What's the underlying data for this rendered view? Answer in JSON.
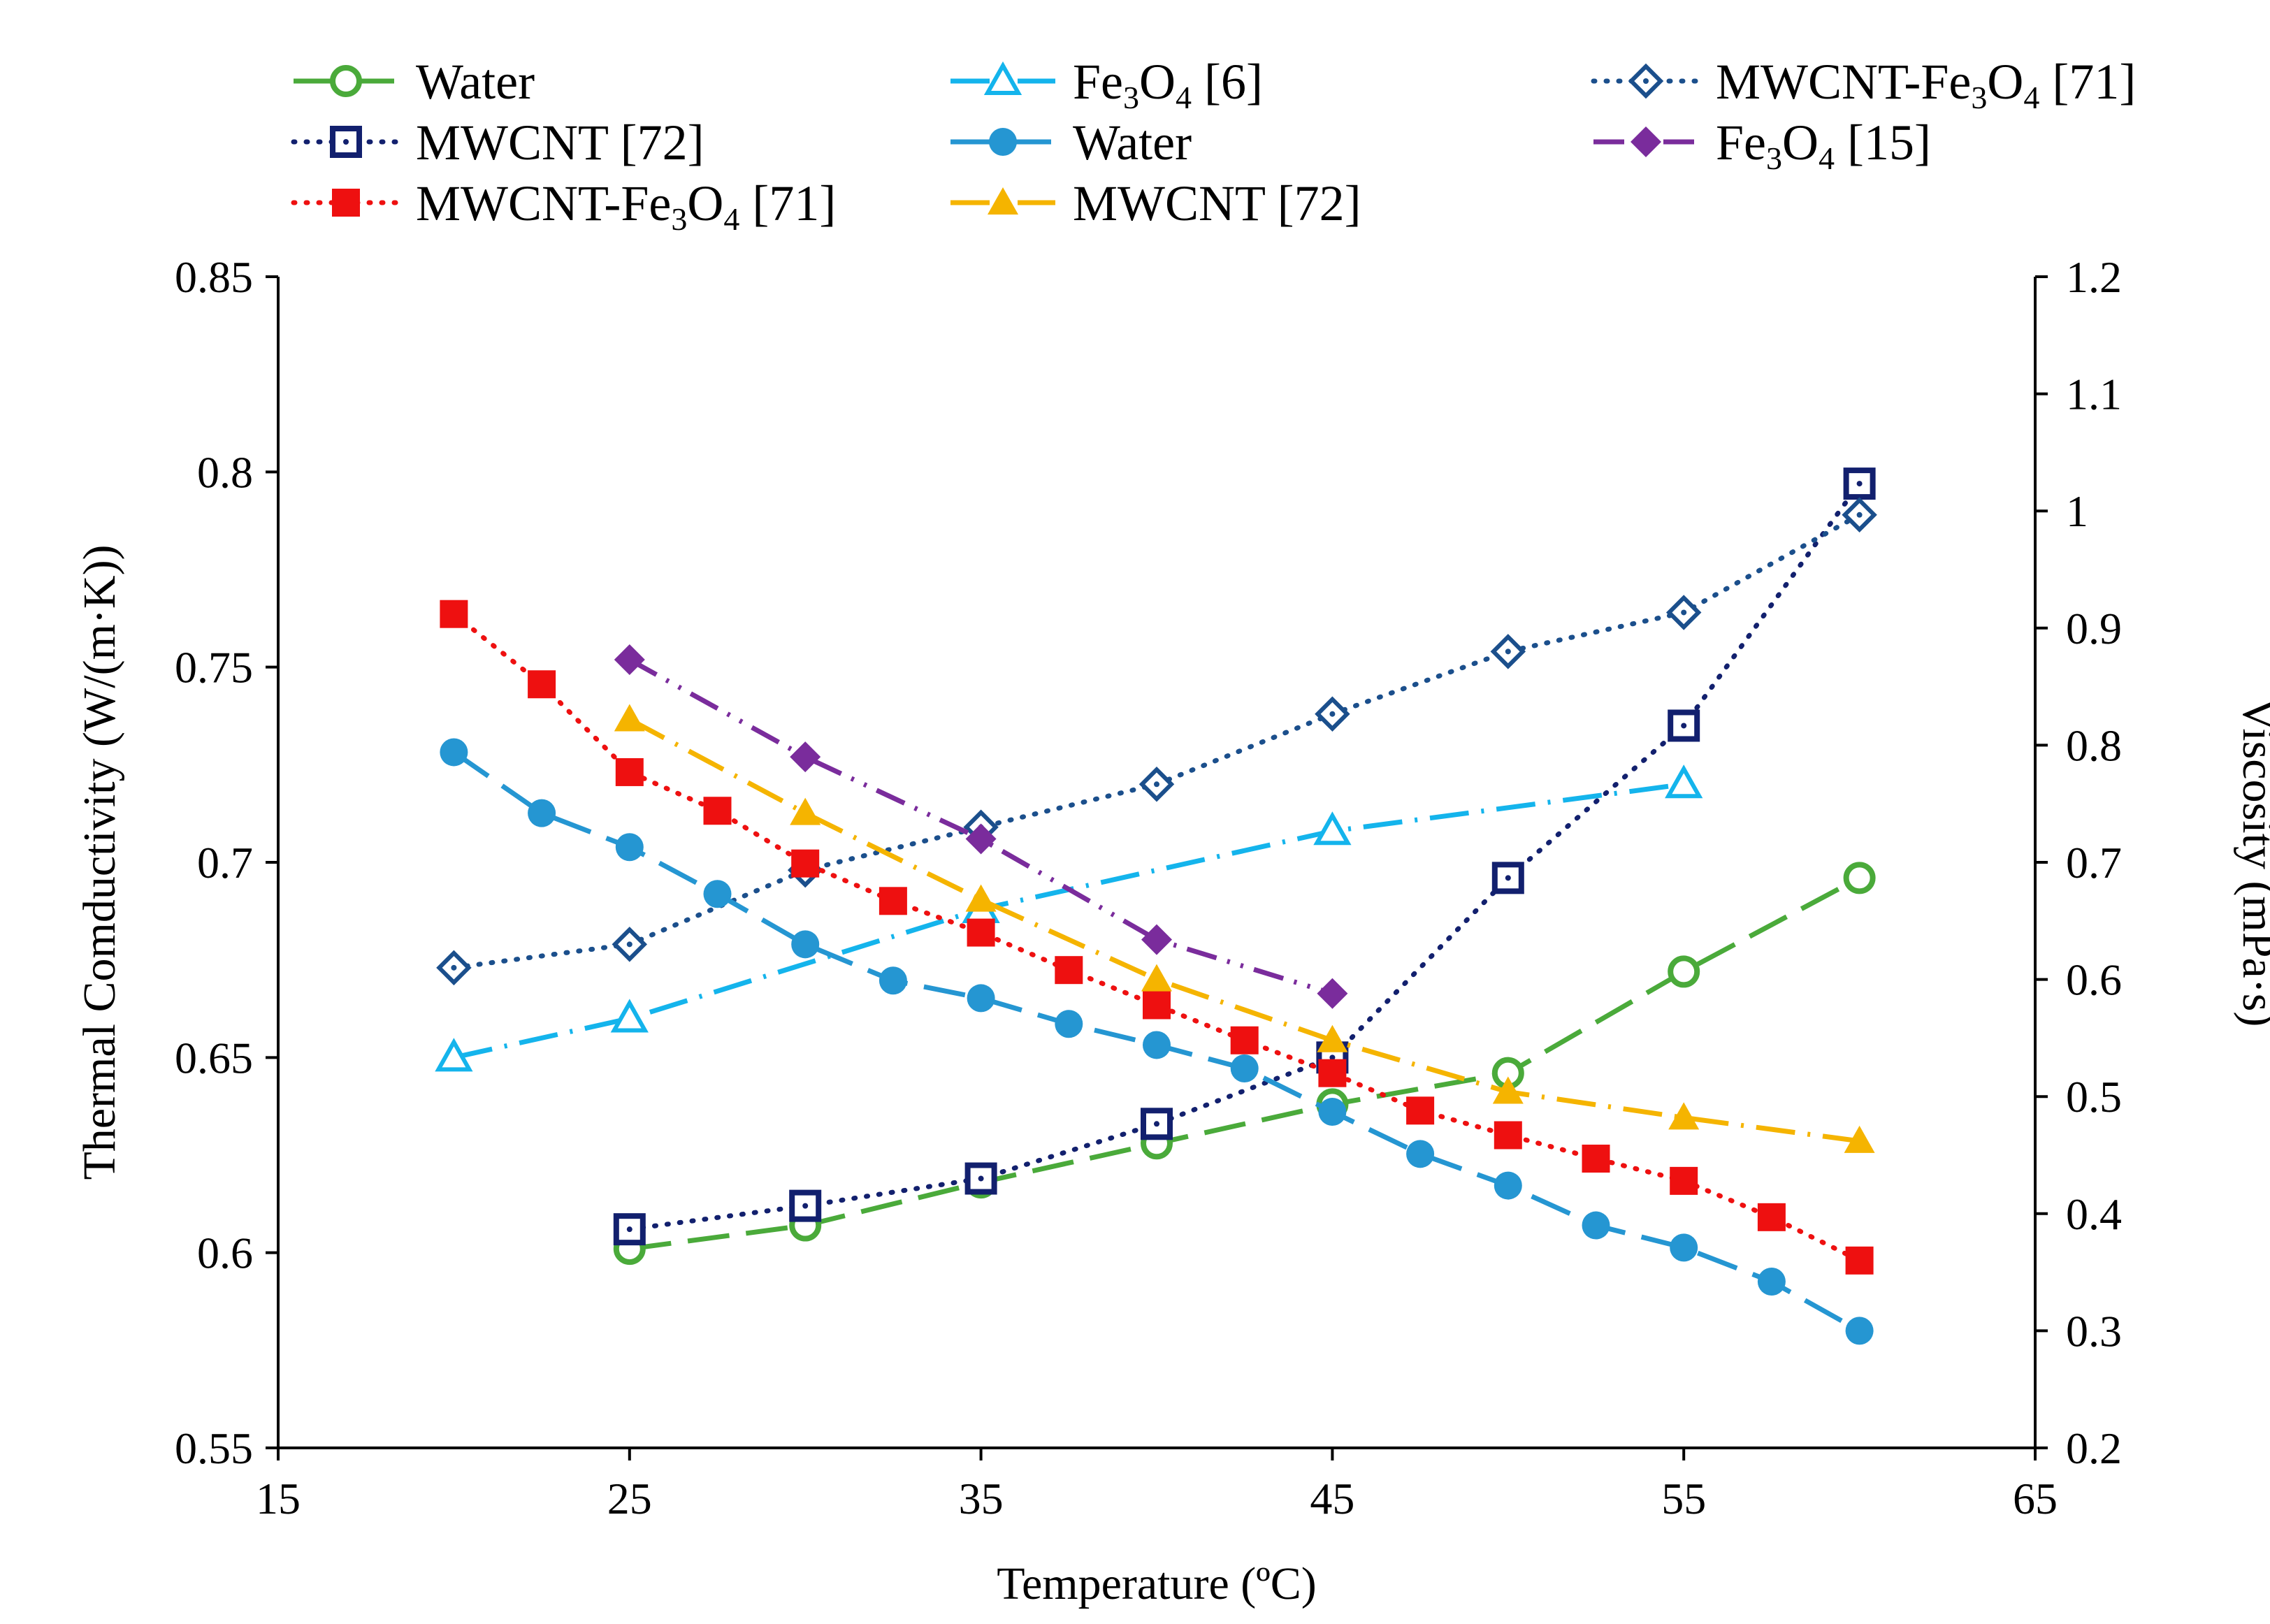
{
  "chart_data": {
    "type": "line",
    "xlabel": "Temperature (ºC)",
    "ylabel_left": "Thermal Comductivity (W/(m·K))",
    "ylabel_right": "Viscosity (mPa·s)",
    "xlim": [
      15,
      65
    ],
    "xticks": [
      15,
      25,
      35,
      45,
      55,
      65
    ],
    "ylim_left": [
      0.55,
      0.85
    ],
    "yticks_left": [
      0.55,
      0.6,
      0.65,
      0.7,
      0.75,
      0.8,
      0.85
    ],
    "ylim_right": [
      0.2,
      1.2
    ],
    "yticks_right": [
      0.2,
      0.3,
      0.4,
      0.5,
      0.6,
      0.7,
      0.8,
      0.9,
      1.0,
      1.1,
      1.2
    ],
    "xtick_labels": [
      "15",
      "25",
      "35",
      "45",
      "55",
      "65"
    ],
    "ytick_labels_left": [
      "0.55",
      "0.6",
      "0.65",
      "0.7",
      "0.75",
      "0.8",
      "0.85"
    ],
    "ytick_labels_right": [
      "0.2",
      "0.3",
      "0.4",
      "0.5",
      "0.6",
      "0.7",
      "0.8",
      "0.9",
      "1",
      "1.1",
      "1.2"
    ],
    "series": [
      {
        "id": "water-tc",
        "name": "Water",
        "axis": "left",
        "color": "#4aaa3a",
        "dash": "long-dash",
        "marker": "circle-open",
        "x": [
          25,
          30,
          35,
          40,
          45,
          50,
          55,
          60
        ],
        "y": [
          0.601,
          0.607,
          0.618,
          0.628,
          0.638,
          0.646,
          0.672,
          0.696
        ]
      },
      {
        "id": "mwcnt-tc",
        "name": "MWCNT [72]",
        "name_main": "MWCNT [72]",
        "axis": "left",
        "color": "#12206e",
        "dash": "dotted",
        "marker": "square-open-dot",
        "x": [
          25,
          30,
          35,
          40,
          45,
          50,
          55,
          60
        ],
        "y": [
          0.606,
          0.612,
          0.619,
          0.633,
          0.65,
          0.696,
          0.735,
          0.797
        ]
      },
      {
        "id": "mwcnt-fe3o4-tc",
        "name": "MWCNT-Fe3O4 [71]",
        "name_main": "MWCNT-Fe",
        "name_sub1": "3",
        "name_mid": "O",
        "name_sub2": "4",
        "name_tail": " [71]",
        "axis": "left",
        "color": "#1b4f8c",
        "dash": "dotted",
        "marker": "diamond-open-dot",
        "x": [
          20,
          25,
          30,
          35,
          40,
          45,
          50,
          55,
          60
        ],
        "y": [
          0.673,
          0.679,
          0.698,
          0.709,
          0.72,
          0.738,
          0.754,
          0.764,
          0.789
        ]
      },
      {
        "id": "fe3o4-tc",
        "name": "Fe3O4 [6]",
        "name_main": "Fe",
        "name_sub1": "3",
        "name_mid": "O",
        "name_sub2": "4",
        "name_tail": " [6]",
        "axis": "left",
        "color": "#14b4ec",
        "dash": "dash-dot",
        "marker": "triangle-open",
        "x": [
          20,
          25,
          35,
          45,
          55
        ],
        "y": [
          0.65,
          0.66,
          0.688,
          0.708,
          0.72
        ]
      },
      {
        "id": "water-visc",
        "name": "Water",
        "axis": "right",
        "color": "#2596d2",
        "dash": "long-dash",
        "marker": "circle-filled",
        "x": [
          20,
          22.5,
          25,
          27.5,
          30,
          32.5,
          35,
          37.5,
          40,
          42.5,
          45,
          47.5,
          50,
          52.5,
          55,
          57.5,
          60
        ],
        "y": [
          0.794,
          0.742,
          0.713,
          0.673,
          0.63,
          0.599,
          0.584,
          0.562,
          0.544,
          0.524,
          0.487,
          0.451,
          0.424,
          0.39,
          0.371,
          0.342,
          0.3
        ]
      },
      {
        "id": "fe3o4-visc",
        "name": "Fe3O4 [15]",
        "name_main": "Fe",
        "name_sub1": "3",
        "name_mid": "O",
        "name_sub2": "4",
        "name_tail": " [15]",
        "axis": "right",
        "color": "#7a2c9c",
        "dash": "dash-dot-dot",
        "marker": "diamond-filled",
        "x": [
          25,
          30,
          35,
          40,
          45
        ],
        "y": [
          0.873,
          0.79,
          0.72,
          0.634,
          0.588
        ]
      },
      {
        "id": "mwcnt-fe3o4-visc",
        "name": "MWCNT-Fe3O4 [71]",
        "name_main": "MWCNT-Fe",
        "name_sub1": "3",
        "name_mid": "O",
        "name_sub2": "4",
        "name_tail": " [71]",
        "axis": "right",
        "color": "#ee1010",
        "dash": "dotted",
        "marker": "square-filled",
        "x": [
          20,
          22.5,
          25,
          27.5,
          30,
          32.5,
          35,
          37.5,
          40,
          42.5,
          45,
          47.5,
          50,
          52.5,
          55,
          57.5,
          60
        ],
        "y": [
          0.912,
          0.852,
          0.777,
          0.744,
          0.699,
          0.667,
          0.64,
          0.608,
          0.578,
          0.548,
          0.52,
          0.488,
          0.467,
          0.447,
          0.428,
          0.397,
          0.36
        ]
      },
      {
        "id": "mwcnt-visc",
        "name": "MWCNT [72]",
        "name_main": "MWCNT [72]",
        "axis": "right",
        "color": "#f5b400",
        "dash": "dash-dot",
        "marker": "triangle-filled",
        "x": [
          25,
          30,
          35,
          40,
          45,
          50,
          55,
          60
        ],
        "y": [
          0.822,
          0.742,
          0.668,
          0.6,
          0.548,
          0.504,
          0.482,
          0.462
        ]
      }
    ],
    "legend": {
      "placement": "top",
      "columns": [
        [
          "water-tc",
          "mwcnt-tc",
          "mwcnt-fe3o4-visc"
        ],
        [
          "fe3o4-tc",
          "water-visc",
          "mwcnt-visc"
        ],
        [
          "mwcnt-fe3o4-tc",
          "fe3o4-visc"
        ]
      ]
    },
    "grid": false
  }
}
